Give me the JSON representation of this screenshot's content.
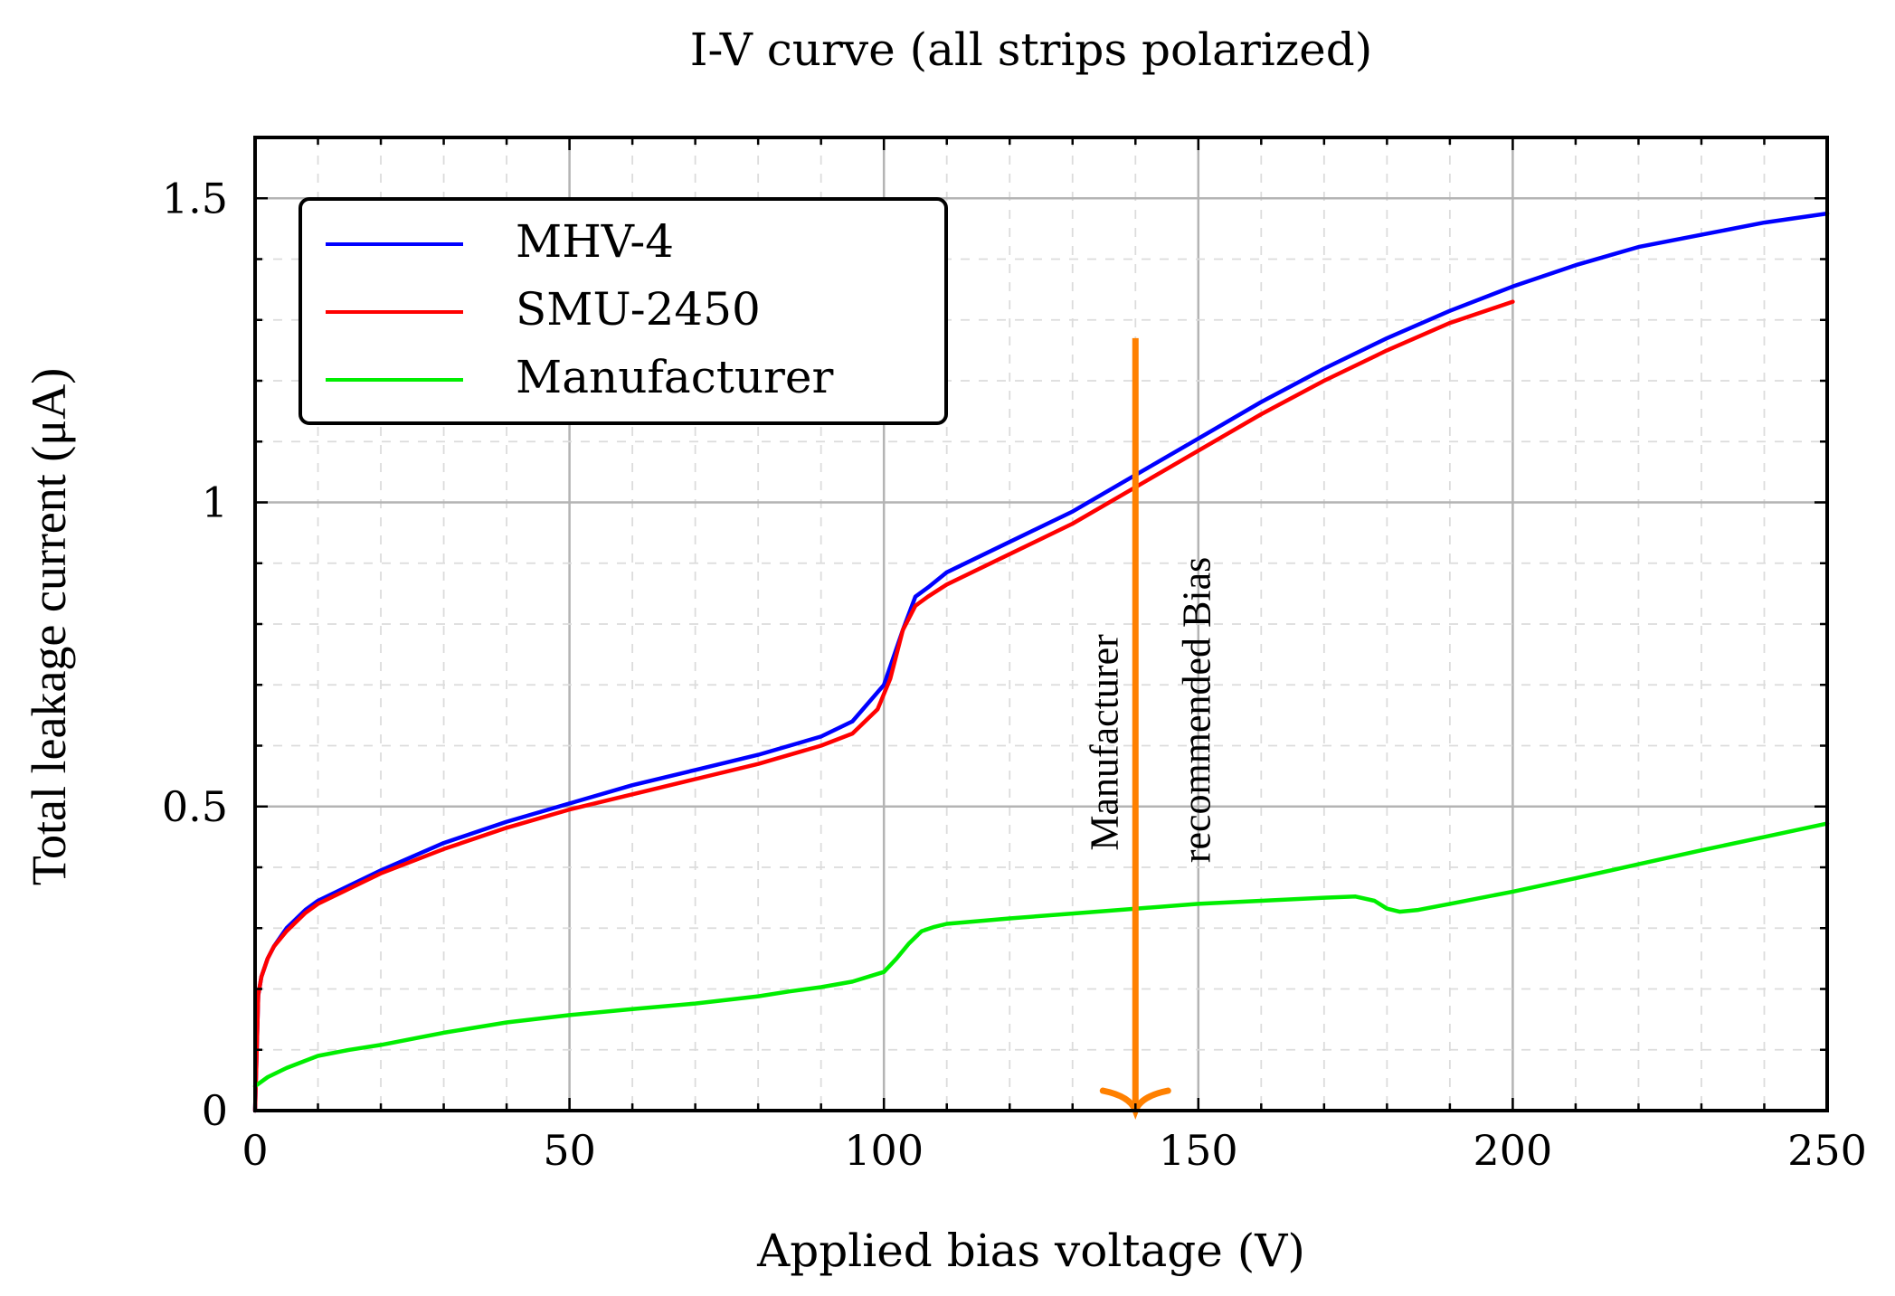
{
  "chart_data": {
    "type": "line",
    "title": "I-V curve (all strips polarized)",
    "xlabel": "Applied bias voltage (V)",
    "ylabel": "Total leakage current (μA)",
    "xlim": [
      0,
      250
    ],
    "ylim": [
      0,
      1.6
    ],
    "xticks": [
      0,
      50,
      100,
      150,
      200,
      250
    ],
    "xtick_labels": [
      "0",
      "50",
      "100",
      "150",
      "200",
      "250"
    ],
    "yticks": [
      0,
      0.5,
      1,
      1.5
    ],
    "ytick_labels": [
      "0",
      "0.5",
      "1",
      "1.5"
    ],
    "grid": true,
    "legend_position": "top-left",
    "series": [
      {
        "name": "MHV-4",
        "color": "#0000ff",
        "x": [
          0,
          0.5,
          1,
          2,
          3,
          5,
          8,
          10,
          15,
          20,
          30,
          40,
          50,
          60,
          70,
          80,
          90,
          95,
          100,
          103,
          105,
          107,
          110,
          120,
          130,
          140,
          150,
          160,
          170,
          180,
          190,
          200,
          210,
          220,
          230,
          240,
          250
        ],
        "y": [
          0,
          0.19,
          0.22,
          0.25,
          0.27,
          0.3,
          0.33,
          0.345,
          0.37,
          0.395,
          0.44,
          0.475,
          0.505,
          0.535,
          0.56,
          0.585,
          0.615,
          0.64,
          0.7,
          0.79,
          0.845,
          0.86,
          0.885,
          0.935,
          0.985,
          1.045,
          1.105,
          1.165,
          1.22,
          1.27,
          1.315,
          1.355,
          1.39,
          1.42,
          1.44,
          1.46,
          1.475
        ]
      },
      {
        "name": "SMU-2450",
        "color": "#ff0000",
        "x": [
          0,
          0.5,
          1,
          2,
          3,
          5,
          8,
          10,
          15,
          20,
          30,
          40,
          50,
          60,
          70,
          80,
          90,
          95,
          99,
          101,
          103,
          105,
          107,
          110,
          120,
          130,
          140,
          150,
          160,
          170,
          180,
          190,
          200
        ],
        "y": [
          0,
          0.19,
          0.22,
          0.25,
          0.27,
          0.295,
          0.325,
          0.34,
          0.365,
          0.39,
          0.43,
          0.465,
          0.495,
          0.52,
          0.545,
          0.57,
          0.6,
          0.62,
          0.66,
          0.71,
          0.79,
          0.83,
          0.845,
          0.865,
          0.915,
          0.965,
          1.025,
          1.085,
          1.145,
          1.2,
          1.25,
          1.295,
          1.33
        ]
      },
      {
        "name": "Manufacturer",
        "color": "#00ee00",
        "x": [
          0,
          2,
          5,
          10,
          15,
          20,
          30,
          40,
          50,
          60,
          70,
          80,
          85,
          90,
          95,
          100,
          102,
          104,
          106,
          108,
          110,
          120,
          130,
          140,
          150,
          160,
          170,
          175,
          178,
          180,
          182,
          185,
          190,
          200,
          210,
          220,
          230,
          240,
          250
        ],
        "y": [
          0.04,
          0.055,
          0.07,
          0.09,
          0.1,
          0.108,
          0.128,
          0.145,
          0.157,
          0.167,
          0.176,
          0.188,
          0.196,
          0.203,
          0.212,
          0.228,
          0.25,
          0.275,
          0.295,
          0.302,
          0.307,
          0.316,
          0.324,
          0.332,
          0.34,
          0.345,
          0.35,
          0.352,
          0.345,
          0.332,
          0.327,
          0.33,
          0.34,
          0.36,
          0.382,
          0.405,
          0.428,
          0.45,
          0.472
        ]
      }
    ],
    "annotation": {
      "type": "vertical-arrow",
      "color": "#ff8000",
      "x": 140,
      "y_start": 1.27,
      "y_end": 0,
      "lines": [
        "Manufacturer",
        "recommended Bias"
      ]
    }
  }
}
